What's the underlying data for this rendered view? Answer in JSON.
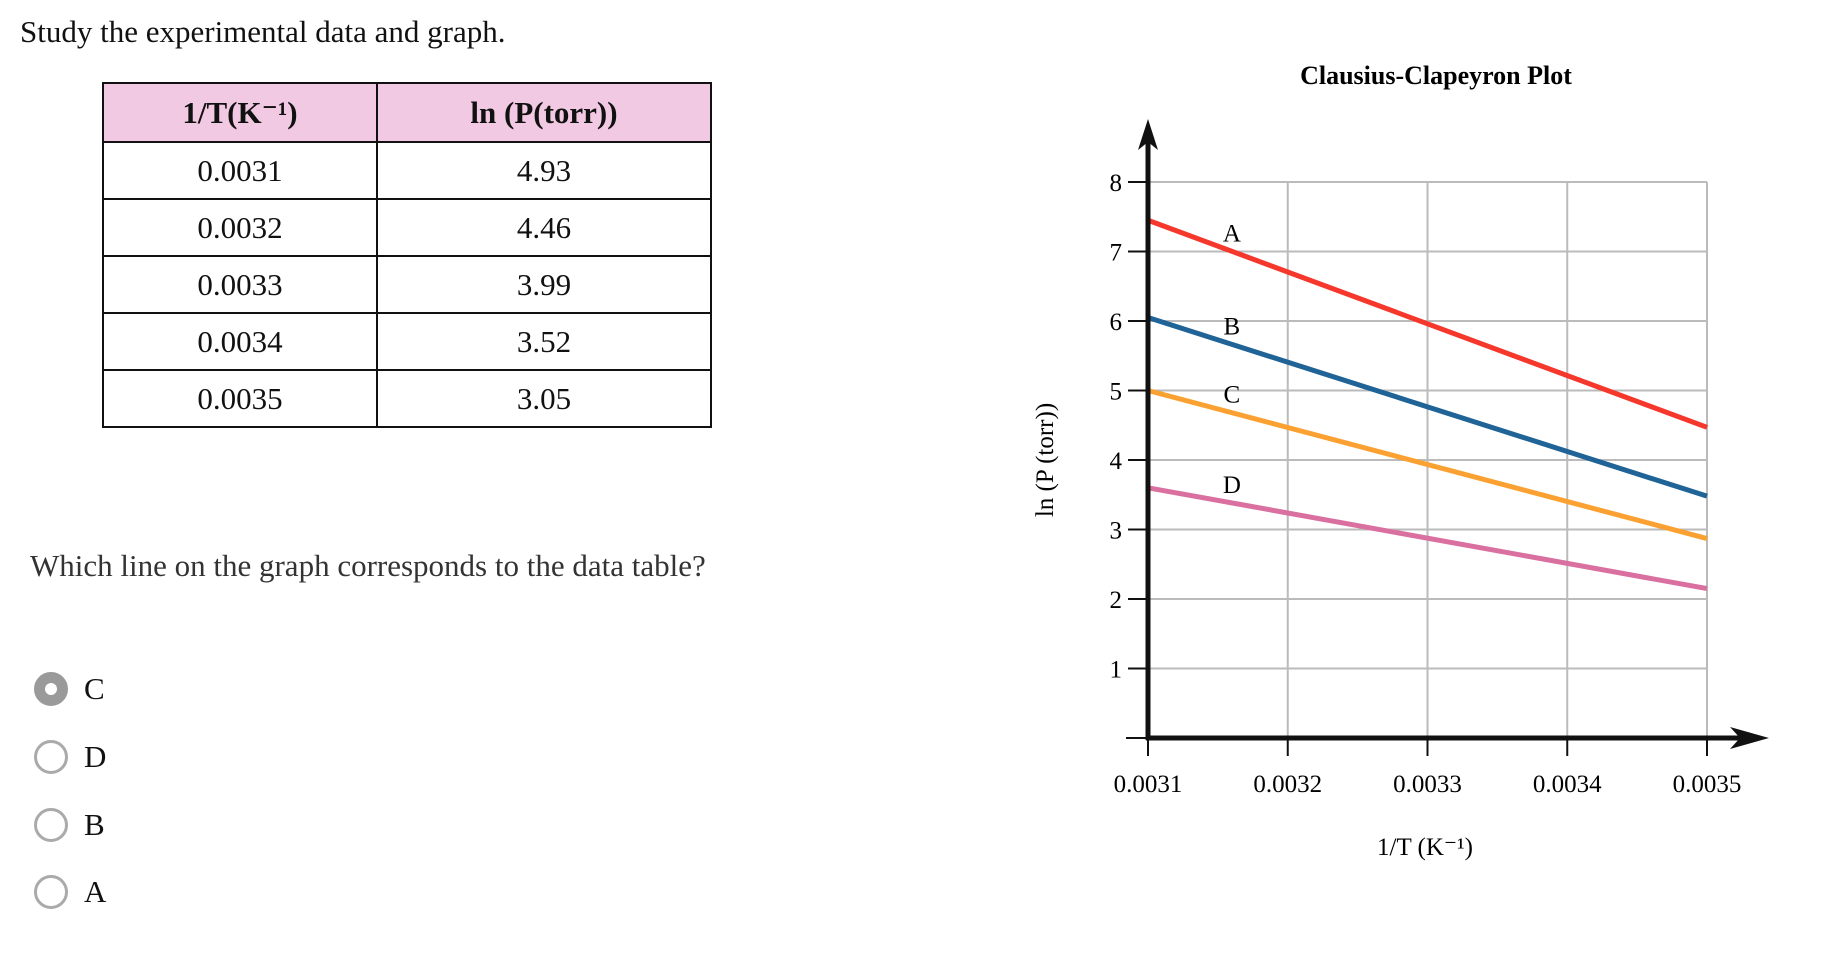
{
  "prompt": "Study the experimental data and graph.",
  "table": {
    "headers": [
      "1/T(K⁻¹)",
      "ln (P(torr))"
    ],
    "rows": [
      [
        "0.0031",
        "4.93"
      ],
      [
        "0.0032",
        "4.46"
      ],
      [
        "0.0033",
        "3.99"
      ],
      [
        "0.0034",
        "3.52"
      ],
      [
        "0.0035",
        "3.05"
      ]
    ]
  },
  "question": "Which line on the graph corresponds to the data table?",
  "options": [
    {
      "label": "C",
      "selected": true
    },
    {
      "label": "D",
      "selected": false
    },
    {
      "label": "B",
      "selected": false
    },
    {
      "label": "A",
      "selected": false
    }
  ],
  "chart_data": {
    "type": "line",
    "title": "Clausius-Clapeyron Plot",
    "xlabel": "1/T (K⁻¹)",
    "ylabel": "ln (P (torr))",
    "xlim": [
      0.0031,
      0.0035
    ],
    "ylim": [
      0,
      8
    ],
    "xticks": [
      "0.0031",
      "0.0032",
      "0.0033",
      "0.0034",
      "0.0035"
    ],
    "yticks": [
      "1",
      "2",
      "3",
      "4",
      "5",
      "6",
      "7",
      "8"
    ],
    "grid": true,
    "x": [
      0.0031,
      0.0035
    ],
    "series": [
      {
        "name": "A",
        "values": [
          7.45,
          4.47
        ],
        "color": "#f5372c"
      },
      {
        "name": "B",
        "values": [
          6.05,
          3.48
        ],
        "color": "#1f6397"
      },
      {
        "name": "C",
        "values": [
          5.0,
          2.87
        ],
        "color": "#fba132"
      },
      {
        "name": "D",
        "values": [
          3.6,
          2.15
        ],
        "color": "#d9709f"
      }
    ]
  }
}
